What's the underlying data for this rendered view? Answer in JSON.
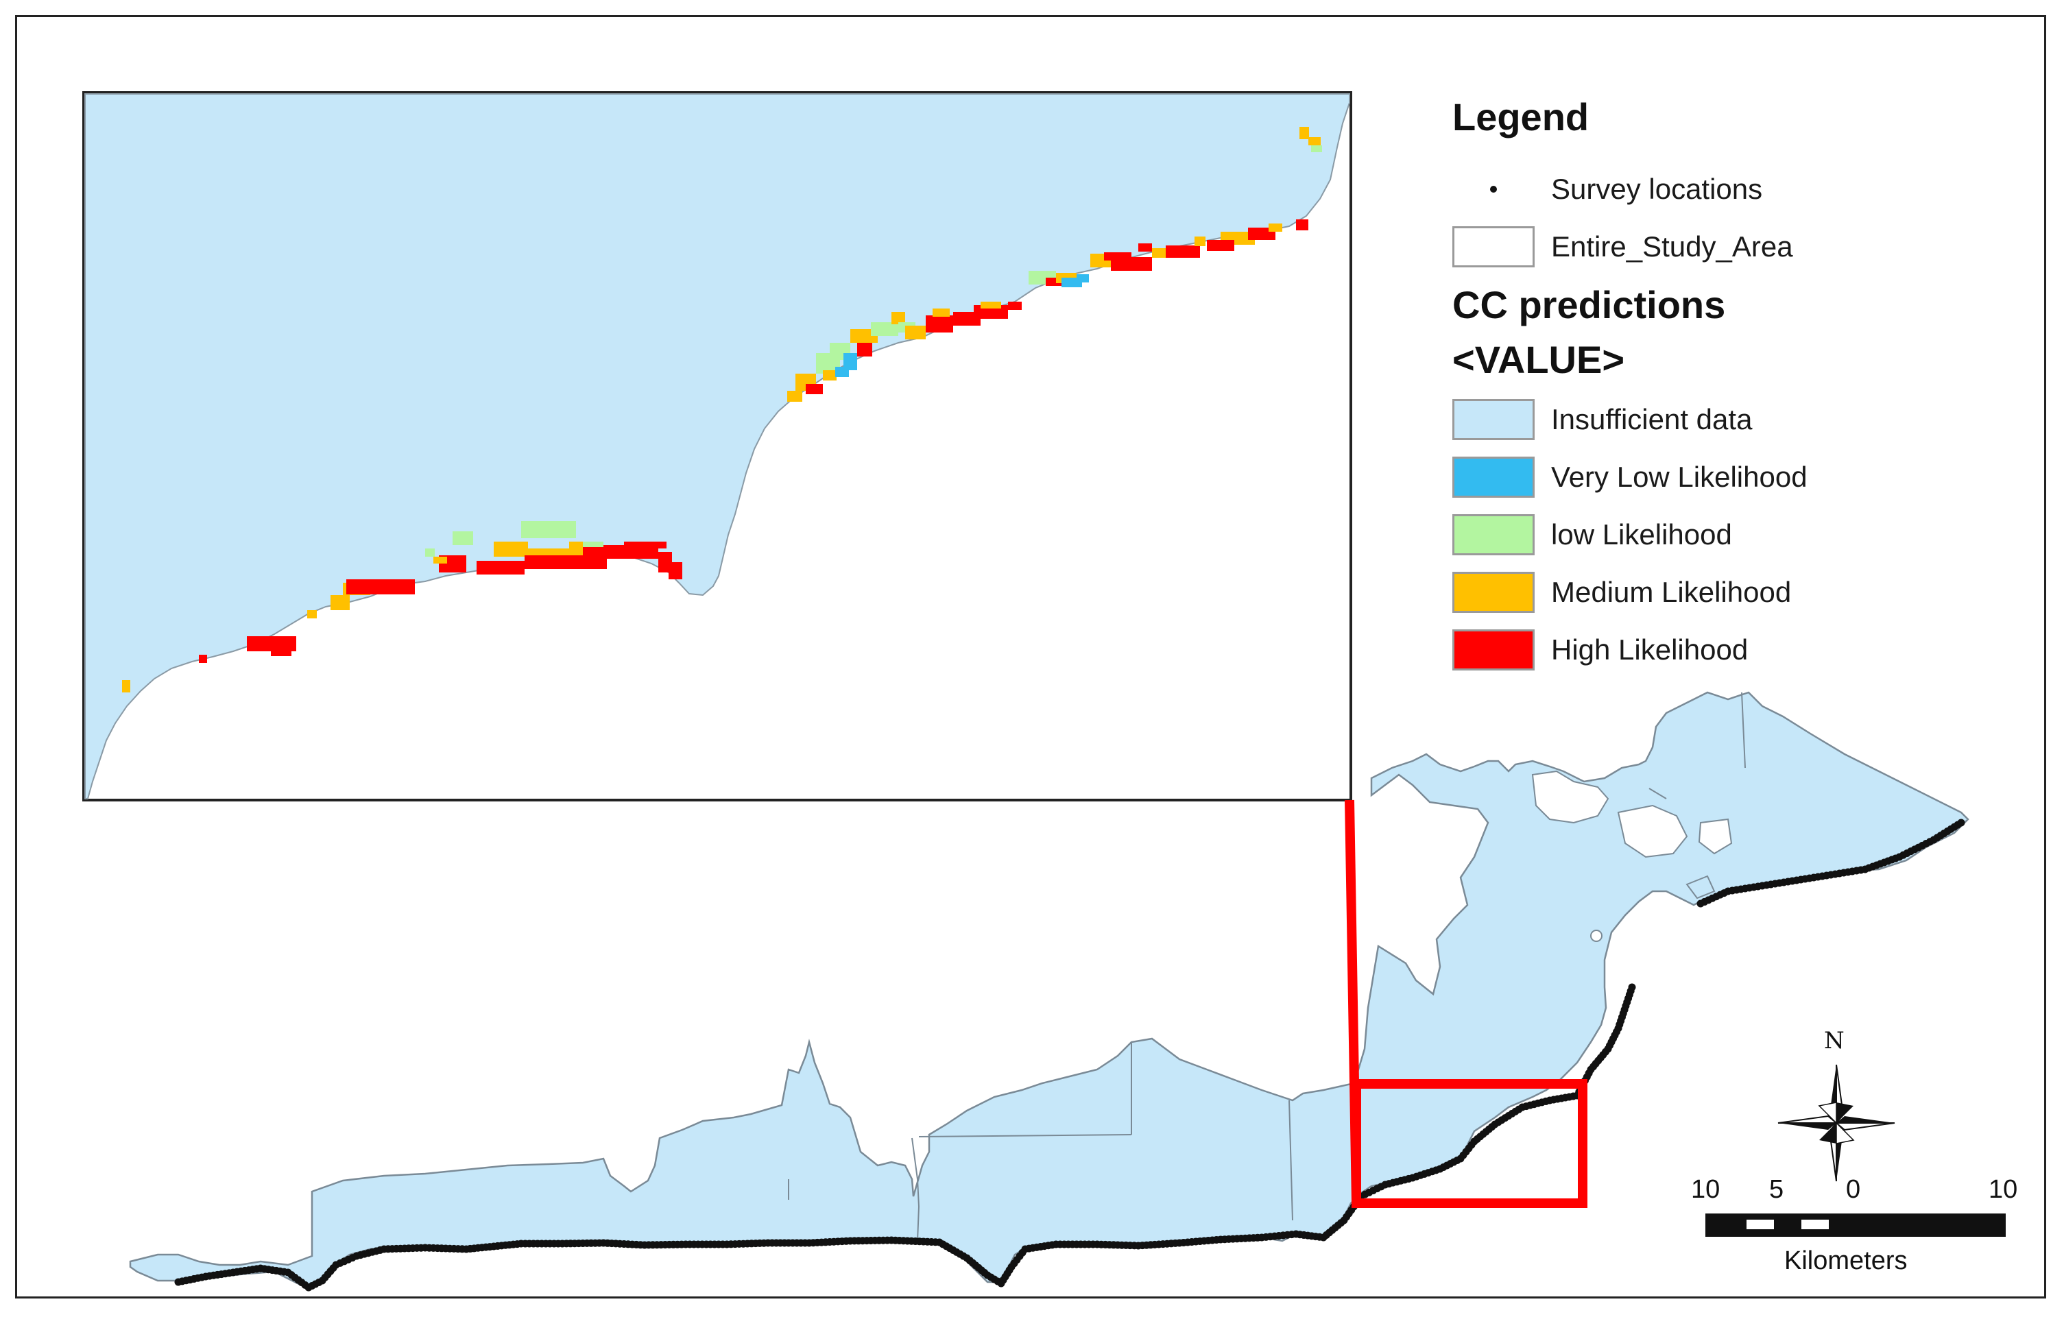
{
  "legend": {
    "title": "Legend",
    "survey_label": "Survey locations",
    "study_area_label": "Entire_Study_Area",
    "predictions_heading": "CC predictions",
    "value_heading": "<VALUE>",
    "classes": [
      {
        "label": "Insufficient data",
        "color": "#c6e7f9"
      },
      {
        "label": "Very Low Likelihood",
        "color": "#33bbf0"
      },
      {
        "label": "low Likelihood",
        "color": "#b3f5a0"
      },
      {
        "label": "Medium Likelihood",
        "color": "#ffc000"
      },
      {
        "label": "High Likelihood",
        "color": "#ff0000"
      }
    ]
  },
  "scale_bar": {
    "ticks": [
      "10",
      "5",
      "0",
      "10"
    ],
    "unit": "Kilometers"
  },
  "north_arrow": {
    "label": "N"
  },
  "colors": {
    "land": "#c6e7f9",
    "boundary": "#7a8a96",
    "survey_points": "#111111",
    "inset_frame": "#ff0000"
  }
}
